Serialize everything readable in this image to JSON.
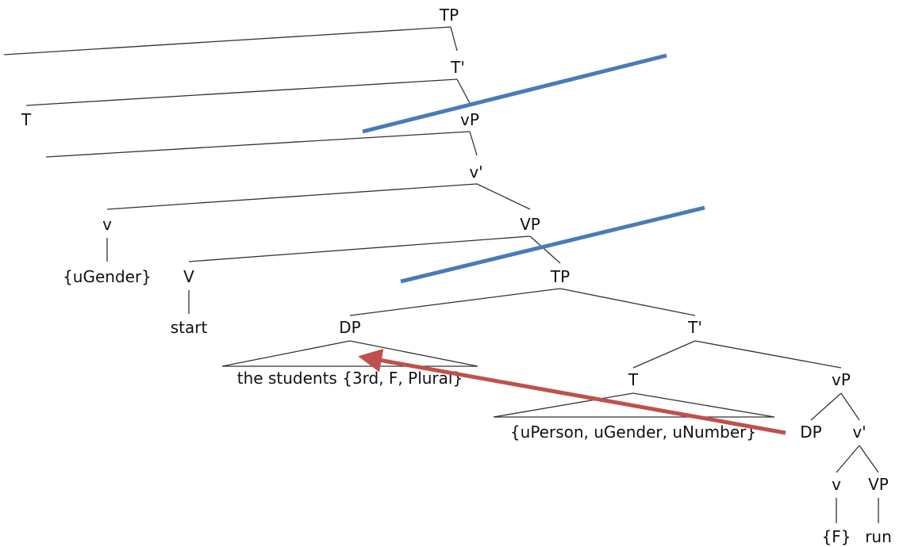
{
  "tree": {
    "labels": {
      "tp_top": "TP",
      "tbar_top": "T'",
      "t_top": "T",
      "vp_small_top": "vP",
      "vbar_top": "v'",
      "v_top": "v",
      "ugender": "{uGender}",
      "VP_top": "VP",
      "V_top": "V",
      "start": "start",
      "tp_embedded": "TP",
      "dp_subject": "DP",
      "the_students": "the students {3rd, F, Plural}",
      "tbar_embedded": "T'",
      "t_embedded": "T",
      "uperson": "{uPerson, uGender, uNumber}",
      "vp_small_embedded": "vP",
      "dp_trace": "DP",
      "vbar_embedded": "v'",
      "v_embedded": "v",
      "VP_embedded": "VP",
      "f_feature": "{F}",
      "run": "run"
    }
  },
  "annotations": {
    "phase_line_color": "#4a7bb7",
    "movement_arrow_color": "#c0504d"
  }
}
